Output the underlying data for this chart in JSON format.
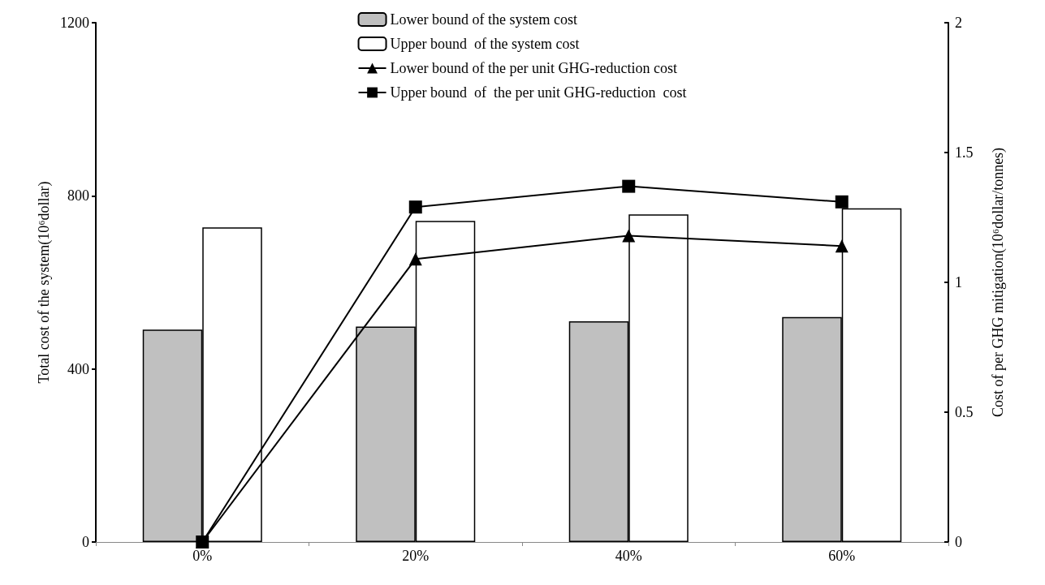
{
  "chart_data": {
    "type": "bar",
    "categories": [
      "0%",
      "20%",
      "40%",
      "60%"
    ],
    "ylabel": "Total cost of the system(10⁶dollar)",
    "y2label": "Cost of per GHG mitigation(10⁶dollar/tonnes)",
    "ylim": [
      0,
      1200
    ],
    "yticks": [
      0,
      400,
      800,
      1200
    ],
    "y2lim": [
      0,
      2
    ],
    "y2ticks": [
      0,
      0.5,
      1,
      1.5,
      2
    ],
    "grid": false,
    "legend": "top",
    "line_style": "solid",
    "series": [
      {
        "name": "Lower bound of the system cost",
        "color": "#c0c0c0",
        "values": [
          491,
          498,
          510,
          520
        ]
      },
      {
        "name": "Upper bound  of the system cost",
        "color": "#ffffff",
        "values": [
          727,
          742,
          757,
          771
        ]
      },
      {
        "name": "Lower bound of the per unit GHG-reduction cost",
        "type": "line",
        "axis": "y2",
        "marker": "triangle",
        "color": "#000000",
        "values": [
          0,
          1.09,
          1.18,
          1.14
        ]
      },
      {
        "name": "Upper bound  of  the per unit GHG-reduction  cost",
        "type": "line",
        "axis": "y2",
        "marker": "square",
        "color": "#000000",
        "values": [
          0,
          1.29,
          1.37,
          1.31
        ]
      }
    ]
  }
}
